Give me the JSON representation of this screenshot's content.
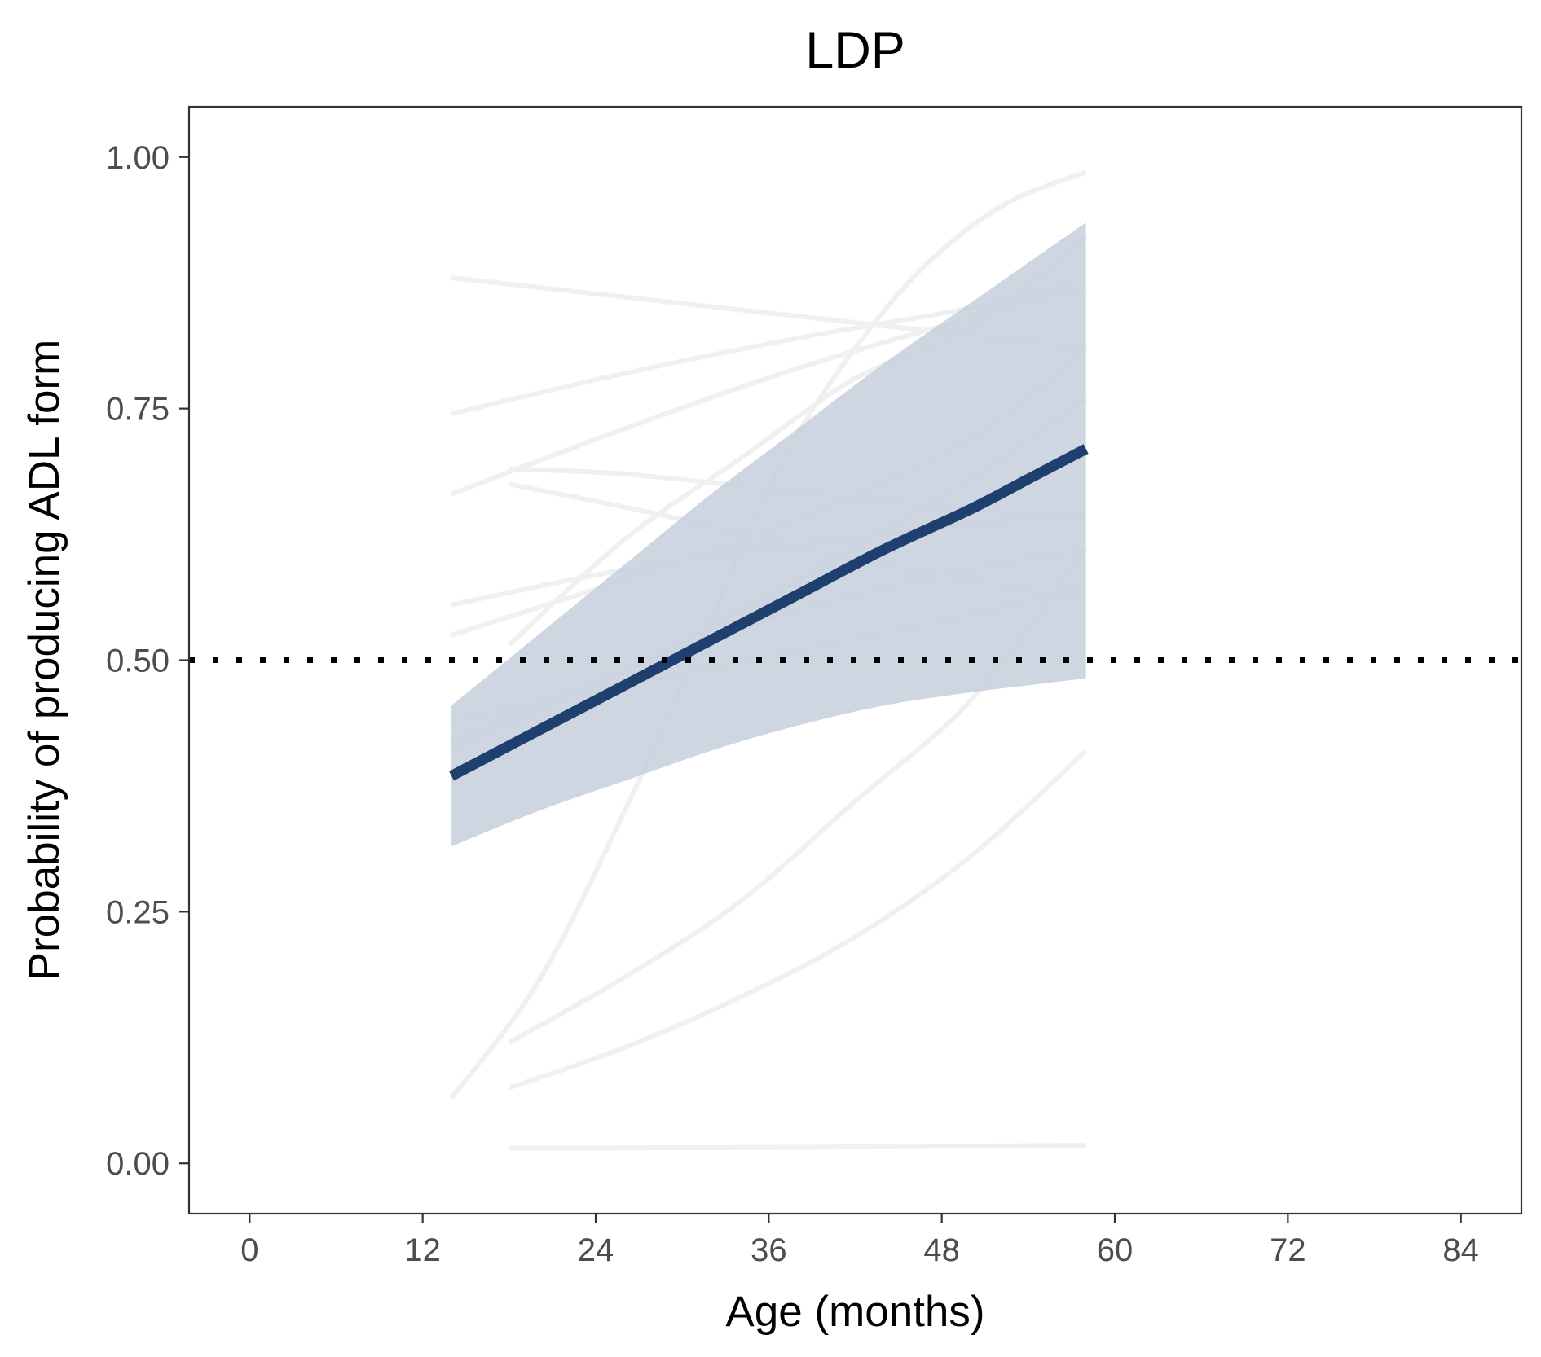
{
  "chart_data": {
    "type": "line",
    "title": "LDP",
    "xlabel": "Age (months)",
    "ylabel": "Probability of producing ADL form",
    "xlim": [
      -4.2,
      88.2
    ],
    "ylim": [
      -0.05,
      1.05
    ],
    "xticks": [
      0,
      12,
      24,
      36,
      48,
      60,
      72,
      84
    ],
    "xtick_labels": [
      "0",
      "12",
      "24",
      "36",
      "48",
      "60",
      "72",
      "84"
    ],
    "yticks": [
      0,
      0.25,
      0.5,
      0.75,
      1.0
    ],
    "ytick_labels": [
      "0.00",
      "0.25",
      "0.50",
      "0.75",
      "1.00"
    ],
    "grid": false,
    "legend": "none",
    "reference_line": {
      "y": 0.5,
      "style": "dotted",
      "color": "#000000"
    },
    "colors": {
      "mean_line": "#1f3f6e",
      "ribbon": "#c5cfdc",
      "individual_lines": "#f0f0f0"
    },
    "mean_curve": {
      "x": [
        14,
        20,
        26,
        32,
        38,
        44,
        50,
        54,
        58
      ],
      "y": [
        0.385,
        0.43,
        0.475,
        0.52,
        0.565,
        0.61,
        0.65,
        0.68,
        0.71
      ]
    },
    "ribbon": {
      "x": [
        14,
        20,
        26,
        32,
        38,
        44,
        50,
        54,
        58
      ],
      "lower": [
        0.315,
        0.35,
        0.38,
        0.41,
        0.435,
        0.455,
        0.468,
        0.475,
        0.482
      ],
      "upper": [
        0.455,
        0.525,
        0.595,
        0.665,
        0.73,
        0.795,
        0.855,
        0.895,
        0.935
      ]
    },
    "series": [
      {
        "x": [
          14,
          58
        ],
        "y": [
          0.88,
          0.81
        ]
      },
      {
        "x": [
          14,
          26,
          38,
          50,
          58
        ],
        "y": [
          0.745,
          0.785,
          0.82,
          0.85,
          0.88
        ]
      },
      {
        "x": [
          14,
          26,
          38,
          50,
          58
        ],
        "y": [
          0.665,
          0.73,
          0.79,
          0.84,
          0.87
        ]
      },
      {
        "x": [
          18,
          26,
          36,
          46,
          58
        ],
        "y": [
          0.69,
          0.685,
          0.67,
          0.655,
          0.64
        ]
      },
      {
        "x": [
          18,
          30,
          42,
          58
        ],
        "y": [
          0.675,
          0.64,
          0.6,
          0.56
        ]
      },
      {
        "x": [
          14,
          26,
          38,
          50,
          58
        ],
        "y": [
          0.555,
          0.59,
          0.615,
          0.635,
          0.645
        ]
      },
      {
        "x": [
          14,
          26,
          38,
          50,
          58
        ],
        "y": [
          0.525,
          0.58,
          0.64,
          0.72,
          0.81
        ]
      },
      {
        "x": [
          14,
          26,
          38,
          50,
          58
        ],
        "y": [
          0.42,
          0.49,
          0.55,
          0.59,
          0.61
        ]
      },
      {
        "x": [
          14,
          26,
          38,
          50,
          58
        ],
        "y": [
          0.44,
          0.475,
          0.51,
          0.545,
          0.575
        ]
      },
      {
        "x": [
          18,
          26,
          34,
          42,
          50,
          58
        ],
        "y": [
          0.515,
          0.62,
          0.7,
          0.78,
          0.83,
          0.92
        ]
      },
      {
        "x": [
          14,
          20,
          26,
          32,
          36,
          40,
          46,
          52,
          58
        ],
        "y": [
          0.065,
          0.18,
          0.35,
          0.54,
          0.67,
          0.77,
          0.88,
          0.95,
          0.985
        ]
      },
      {
        "x": [
          18,
          26,
          34,
          42,
          50,
          58
        ],
        "y": [
          0.12,
          0.185,
          0.26,
          0.36,
          0.46,
          0.61
        ]
      },
      {
        "x": [
          18,
          26,
          34,
          42,
          50,
          58
        ],
        "y": [
          0.075,
          0.115,
          0.165,
          0.225,
          0.305,
          0.41
        ]
      },
      {
        "x": [
          18,
          38,
          58
        ],
        "y": [
          0.015,
          0.016,
          0.018
        ]
      },
      {
        "x": [
          14,
          26,
          38,
          50,
          58
        ],
        "y": [
          0.41,
          0.49,
          0.58,
          0.68,
          0.76
        ]
      }
    ]
  }
}
